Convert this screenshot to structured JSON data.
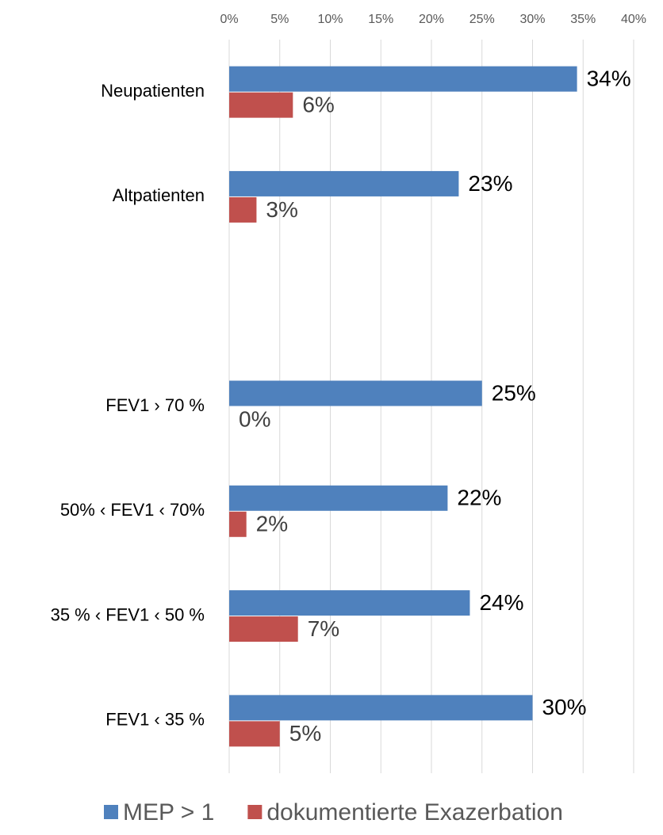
{
  "chart_data": {
    "type": "barh",
    "categories": [
      "Neupatienten",
      "Altpatienten",
      null,
      "FEV1 › 70 %",
      "50% ‹ FEV1 ‹ 70%",
      "35 % ‹ FEV1 ‹ 50 %",
      "FEV1 ‹ 35 %"
    ],
    "series": [
      {
        "name": "MEP > 1",
        "color": "#4f81bd",
        "values": [
          34.4,
          22.7,
          null,
          25.0,
          21.6,
          23.8,
          30.0
        ],
        "value_labels": [
          "34%",
          "23%",
          null,
          "25%",
          "22%",
          "24%",
          "30%"
        ]
      },
      {
        "name": "dokumentierte Exazerbation",
        "color": "#c0504d",
        "values": [
          6.3,
          2.7,
          null,
          0,
          1.7,
          6.8,
          5.0
        ],
        "value_labels": [
          "6%",
          "3%",
          null,
          "0%",
          "2%",
          "7%",
          "5%"
        ]
      }
    ],
    "xlim": [
      0,
      40
    ],
    "xticks": [
      {
        "value": 0,
        "label": "0%"
      },
      {
        "value": 5,
        "label": "5%"
      },
      {
        "value": 10,
        "label": "10%"
      },
      {
        "value": 15,
        "label": "15%"
      },
      {
        "value": 20,
        "label": "20%"
      },
      {
        "value": 25,
        "label": "25%"
      },
      {
        "value": 30,
        "label": "30%"
      },
      {
        "value": 35,
        "label": "35%"
      },
      {
        "value": 40,
        "label": "40%"
      }
    ],
    "grid": true,
    "legend": "bottom"
  }
}
